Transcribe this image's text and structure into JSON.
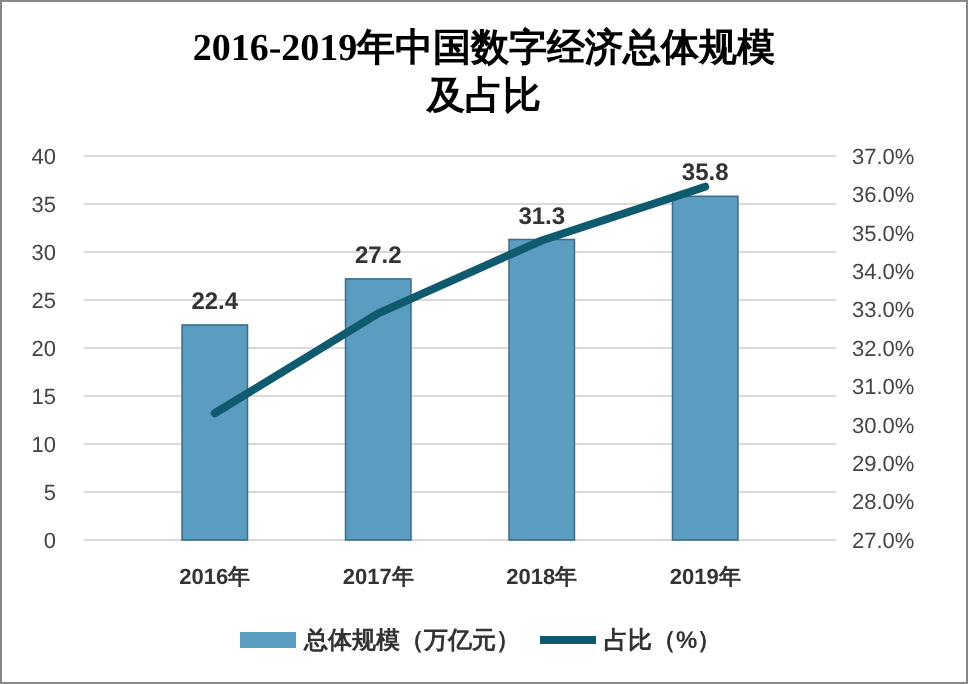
{
  "chart_data": {
    "type": "bar",
    "title": "2016-2019年中国数字经济总体规模及占比",
    "categories": [
      "2016年",
      "2017年",
      "2018年",
      "2019年"
    ],
    "series": [
      {
        "name": "总体规模（万亿元）",
        "color": "#5b9dc0",
        "values": [
          22.4,
          27.2,
          31.3,
          35.8
        ],
        "data_labels": true
      },
      {
        "name": "占比（%）",
        "type": "line",
        "axis": "y2",
        "color": "#0e5a6e",
        "values": [
          30.3,
          32.9,
          34.8,
          36.2
        ]
      }
    ],
    "ylim": [
      0,
      40
    ],
    "yticks": [
      0,
      5,
      10,
      15,
      20,
      25,
      30,
      35,
      40
    ],
    "y2lim": [
      27,
      37
    ],
    "y2ticks": [
      {
        "value": 27,
        "label": "27.0%"
      },
      {
        "value": 28,
        "label": "28.0%"
      },
      {
        "value": 29,
        "label": "29.0%"
      },
      {
        "value": 30,
        "label": "30.0%"
      },
      {
        "value": 31,
        "label": "31.0%"
      },
      {
        "value": 32,
        "label": "32.0%"
      },
      {
        "value": 33,
        "label": "33.0%"
      },
      {
        "value": 34,
        "label": "34.0%"
      },
      {
        "value": 35,
        "label": "35.0%"
      },
      {
        "value": 36,
        "label": "36.0%"
      },
      {
        "value": 37,
        "label": "37.0%"
      }
    ],
    "grid": "y",
    "legend": "bottom"
  }
}
